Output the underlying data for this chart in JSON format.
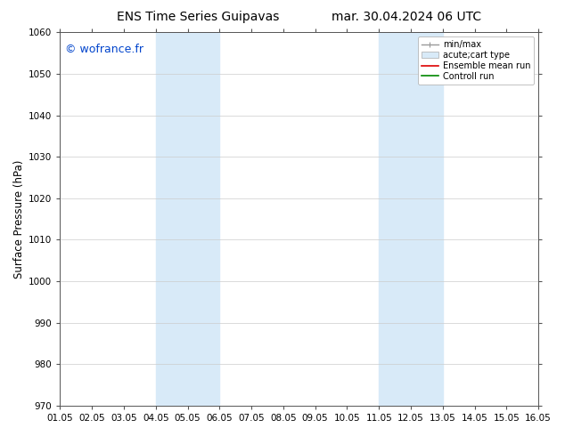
{
  "title_left": "ENS Time Series Guipavas",
  "title_right": "mar. 30.04.2024 06 UTC",
  "ylabel": "Surface Pressure (hPa)",
  "ylim": [
    970,
    1060
  ],
  "yticks": [
    970,
    980,
    990,
    1000,
    1010,
    1020,
    1030,
    1040,
    1050,
    1060
  ],
  "xtick_labels": [
    "01.05",
    "02.05",
    "03.05",
    "04.05",
    "05.05",
    "06.05",
    "07.05",
    "08.05",
    "09.05",
    "10.05",
    "11.05",
    "12.05",
    "13.05",
    "14.05",
    "15.05",
    "16.05"
  ],
  "background_color": "#ffffff",
  "plot_bg_color": "#ffffff",
  "shade_bands": [
    {
      "xmin": 3,
      "xmax": 5,
      "color": "#d8eaf8"
    },
    {
      "xmin": 10,
      "xmax": 12,
      "color": "#d8eaf8"
    }
  ],
  "copyright_text": "© wofrance.fr",
  "copyright_color": "#0044cc",
  "legend_items": [
    {
      "label": "min/max",
      "color": "#999999",
      "lw": 1.0,
      "style": "minmax"
    },
    {
      "label": "acute;cart type",
      "color": "#cccccc",
      "lw": 6,
      "style": "bar"
    },
    {
      "label": "Ensemble mean run",
      "color": "#dd0000",
      "lw": 1.2,
      "style": "line"
    },
    {
      "label": "Controll run",
      "color": "#008800",
      "lw": 1.2,
      "style": "line"
    }
  ],
  "title_fontsize": 10,
  "tick_fontsize": 7.5,
  "ylabel_fontsize": 8.5,
  "copyright_fontsize": 9,
  "legend_fontsize": 7
}
